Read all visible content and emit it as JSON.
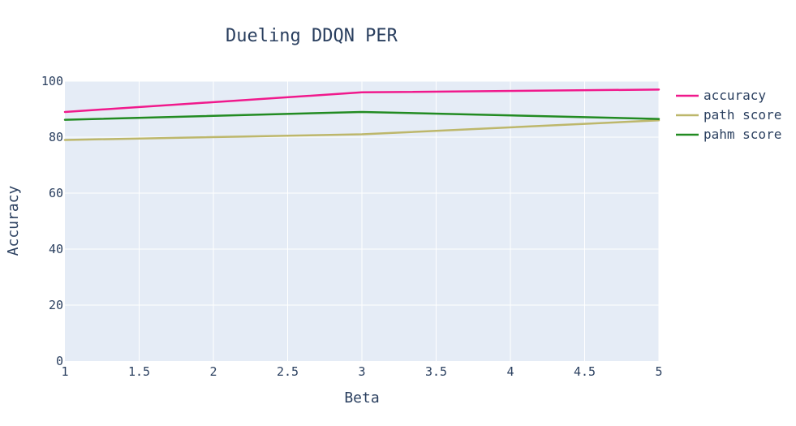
{
  "chart_data": {
    "type": "line",
    "title": "Dueling DDQN PER",
    "xlabel": "Beta",
    "ylabel": "Accuracy",
    "x": [
      1,
      3,
      5
    ],
    "xlim": [
      1,
      5
    ],
    "ylim": [
      0,
      100
    ],
    "xticks": [
      1,
      1.5,
      2,
      2.5,
      3,
      3.5,
      4,
      4.5,
      5
    ],
    "xtick_labels": [
      "1",
      "1.5",
      "2",
      "2.5",
      "3",
      "3.5",
      "4",
      "4.5",
      "5"
    ],
    "yticks": [
      0,
      20,
      40,
      60,
      80,
      100
    ],
    "ytick_labels": [
      "0",
      "20",
      "40",
      "60",
      "80",
      "100"
    ],
    "grid": true,
    "legend_position": "right",
    "plot_background": "#e5ecf6",
    "series": [
      {
        "name": "accuracy",
        "color": "#f0198c",
        "values": [
          89,
          96,
          97
        ]
      },
      {
        "name": "path score",
        "color": "#bdb76b",
        "values": [
          79,
          81,
          86
        ]
      },
      {
        "name": "pahm score",
        "color": "#228b22",
        "values": [
          86.2,
          89,
          86.5
        ]
      }
    ]
  }
}
